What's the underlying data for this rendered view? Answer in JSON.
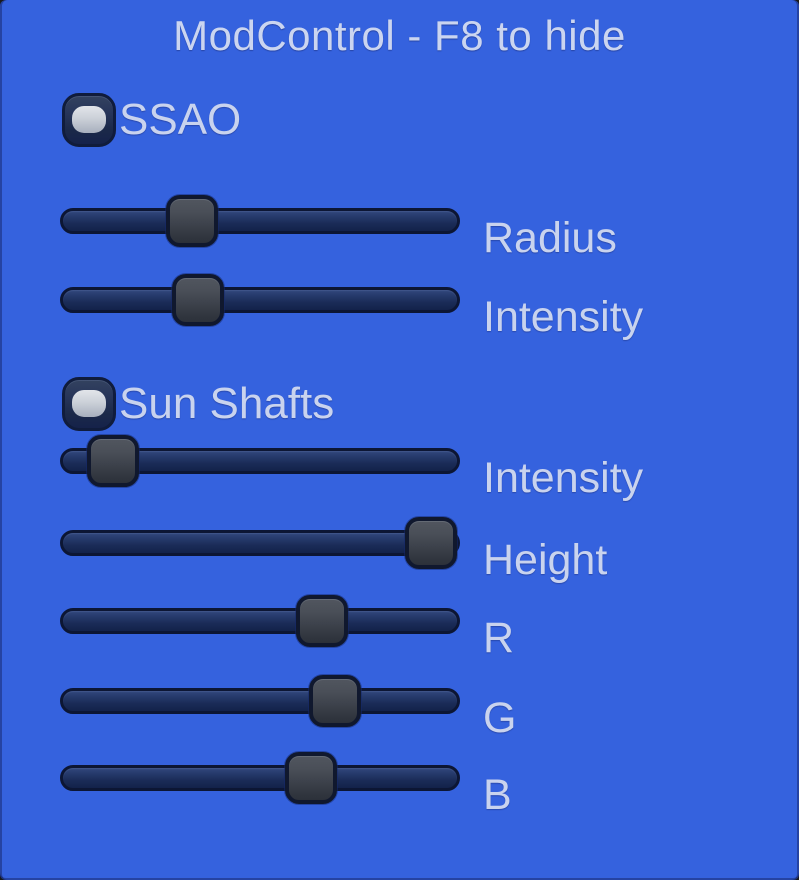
{
  "title": "ModControl - F8 to hide",
  "hotkey_hint": "F8",
  "colors": {
    "background": "#3562de",
    "text": "#c9d3ee",
    "track_border": "#0c1634",
    "track_fill_top": "#32477c",
    "track_fill_bottom": "#13224a",
    "thumb_fill": "#3e434d",
    "checkbox_fill": "#27355a",
    "checkbox_indicator": "#ccd1d9"
  },
  "toggles": [
    {
      "label": "SSAO",
      "checked": true
    },
    {
      "label": "Sun Shafts",
      "checked": true
    }
  ],
  "sliders": [
    {
      "group": "SSAO",
      "label": "Radius",
      "value_pct": 30
    },
    {
      "group": "SSAO",
      "label": "Intensity",
      "value_pct": 32
    },
    {
      "group": "Sun Shafts",
      "label": "Intensity",
      "value_pct": 7
    },
    {
      "group": "Sun Shafts",
      "label": "Height",
      "value_pct": 100
    },
    {
      "group": "Sun Shafts",
      "label": "R",
      "value_pct": 68
    },
    {
      "group": "Sun Shafts",
      "label": "G",
      "value_pct": 72
    },
    {
      "group": "Sun Shafts",
      "label": "B",
      "value_pct": 65
    }
  ]
}
